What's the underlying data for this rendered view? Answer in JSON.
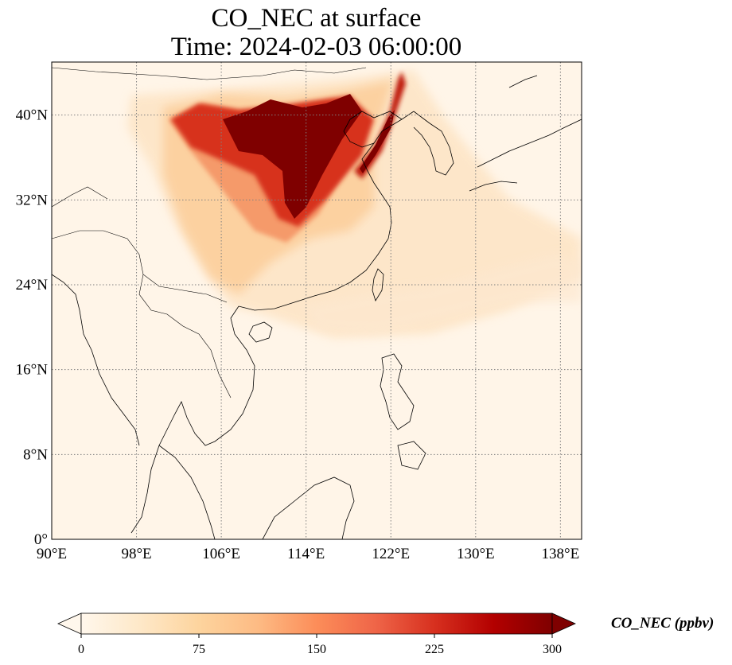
{
  "title": {
    "line1": "CO_NEC at surface",
    "line2": "Time: 2024-02-03 06:00:00"
  },
  "map": {
    "lon_range": [
      90,
      140
    ],
    "lat_range": [
      0,
      45
    ],
    "lon_ticks": [
      "90°E",
      "98°E",
      "106°E",
      "114°E",
      "122°E",
      "130°E",
      "138°E"
    ],
    "lat_ticks": [
      "0°",
      "8°N",
      "16°N",
      "24°N",
      "32°N",
      "40°N"
    ],
    "gridlines": "dotted",
    "coastlines": true,
    "field": "CO_NEC",
    "plume_summary": "highest concentrations over the North China Plain and Bohai region, moderate values spreading over central and southern China"
  },
  "colorbar": {
    "title": "CO_NEC (ppbv)",
    "colormap": "OrRd",
    "min": 0,
    "max": 300,
    "ticks": [
      "0",
      "75",
      "150",
      "225",
      "300"
    ],
    "extend": "both",
    "colors": [
      "#fff7ec",
      "#fee8c8",
      "#fdd49e",
      "#fdbb84",
      "#fc8d59",
      "#ef6548",
      "#d7301f",
      "#b30000",
      "#7f0000"
    ]
  }
}
